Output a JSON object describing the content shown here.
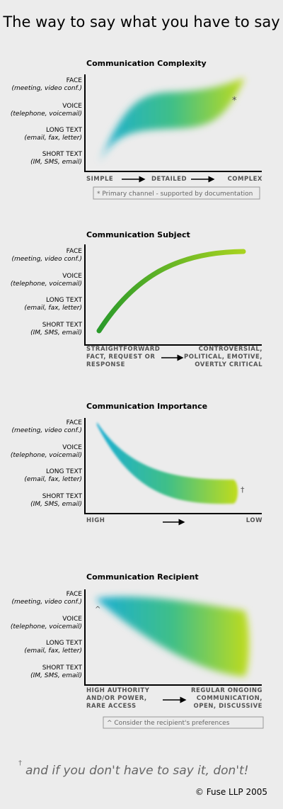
{
  "title": "The way to say what you have to say",
  "panels": [
    {
      "title": "Communication Complexity",
      "levels": [
        {
          "label": "FACE",
          "detail": "(meeting, video conf.)"
        },
        {
          "label": "VOICE",
          "detail": "(telephone, voicemail)"
        },
        {
          "label": "LONG TEXT",
          "detail": "(email, fax, letter)"
        },
        {
          "label": "SHORT TEXT",
          "detail": "(IM, SMS, email)"
        }
      ],
      "x_labels": [
        [
          "SIMPLE"
        ],
        [
          "DETAILED"
        ],
        [
          "COMPLEX"
        ]
      ],
      "marker": "*",
      "note": "* Primary channel - supported by documentation"
    },
    {
      "title": "Communication Subject",
      "levels": [
        {
          "label": "FACE",
          "detail": "(meeting, video conf.)"
        },
        {
          "label": "VOICE",
          "detail": "(telephone, voicemail)"
        },
        {
          "label": "LONG TEXT",
          "detail": "(email, fax, letter)"
        },
        {
          "label": "SHORT TEXT",
          "detail": "(IM, SMS, email)"
        }
      ],
      "x_labels": [
        [
          "STRAIGHTFORWARD",
          "FACT, REQUEST OR",
          "RESPONSE"
        ],
        [
          "CONTROVERSIAL,",
          "POLITICAL, EMOTIVE,",
          "OVERTLY CRITICAL"
        ]
      ]
    },
    {
      "title": "Communication Importance",
      "levels": [
        {
          "label": "FACE",
          "detail": "(meeting, video conf.)"
        },
        {
          "label": "VOICE",
          "detail": "(telephone, voicemail)"
        },
        {
          "label": "LONG TEXT",
          "detail": "(email, fax, letter)"
        },
        {
          "label": "SHORT TEXT",
          "detail": "(IM, SMS, email)"
        }
      ],
      "x_labels": [
        [
          "HIGH"
        ],
        [
          "LOW"
        ]
      ],
      "marker": "†"
    },
    {
      "title": "Communication Recipient",
      "levels": [
        {
          "label": "FACE",
          "detail": "(meeting, video conf.)"
        },
        {
          "label": "VOICE",
          "detail": "(telephone, voicemail)"
        },
        {
          "label": "LONG TEXT",
          "detail": "(email, fax, letter)"
        },
        {
          "label": "SHORT TEXT",
          "detail": "(IM, SMS, email)"
        }
      ],
      "x_labels": [
        [
          "HIGH AUTHORITY",
          "AND/OR POWER,",
          "RARE ACCESS"
        ],
        [
          "REGULAR ONGOING",
          "COMMUNICATION,",
          "OPEN, DISCUSSIVE"
        ]
      ],
      "marker": "^",
      "note": "^ Consider the recipient's preferences"
    }
  ],
  "footnote_mark": "†",
  "footnote": "and if you don't have to say it, don't!",
  "credit": "© Fuse LLP 2005"
}
